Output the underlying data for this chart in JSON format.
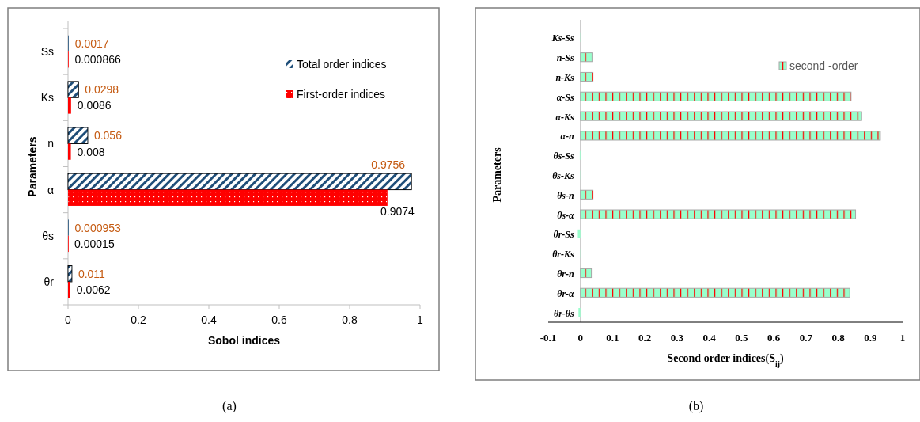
{
  "chart_data": [
    {
      "type": "bar",
      "orientation": "horizontal",
      "categories": [
        "Ss",
        "Ks",
        "n",
        "α",
        "θs",
        "θr"
      ],
      "series": [
        {
          "name": "Total order indices",
          "color": "#1f4e79",
          "values": [
            0.0017,
            0.0298,
            0.056,
            0.9756,
            0.000953,
            0.011
          ]
        },
        {
          "name": "First-order indices",
          "color": "#ff0000",
          "values": [
            0.000866,
            0.0086,
            0.008,
            0.9074,
            0.00015,
            0.0062
          ]
        }
      ],
      "xlabel": "Sobol indices",
      "ylabel": "Parameters",
      "xlim": [
        0,
        1
      ],
      "xticks": [
        0,
        0.2,
        0.4,
        0.6,
        0.8,
        1
      ],
      "data_labels": true,
      "legend": "top right",
      "grid": false,
      "annotations": [
        "(a)"
      ]
    },
    {
      "type": "bar",
      "orientation": "horizontal",
      "categories": [
        "Ks-Ss",
        "n-Ss",
        "n-Ks",
        "α-Ss",
        "α-Ks",
        "α-n",
        "θs-Ss",
        "θs-Ks",
        "θs-n",
        "θs-α",
        "θr-Ss",
        "θr-Ks",
        "θr-n",
        "θr-α",
        "θr-θs"
      ],
      "series": [
        {
          "name": "second -order",
          "color": "#99ffcc",
          "values": [
            0.001,
            0.036,
            0.039,
            0.84,
            0.873,
            0.931,
            -0.002,
            0.001,
            0.039,
            0.854,
            -0.008,
            0.001,
            0.034,
            0.836,
            -0.006
          ]
        }
      ],
      "xlabel": "Second order indices(S$_{ij}$)",
      "ylabel": "Parameters",
      "xlim": [
        -0.1,
        1
      ],
      "xticks": [
        -0.1,
        0,
        0.1,
        0.2,
        0.3,
        0.4,
        0.5,
        0.6,
        0.7,
        0.8,
        0.9,
        1
      ],
      "legend": "top right",
      "grid": false,
      "annotations": [
        "(b)"
      ]
    }
  ]
}
